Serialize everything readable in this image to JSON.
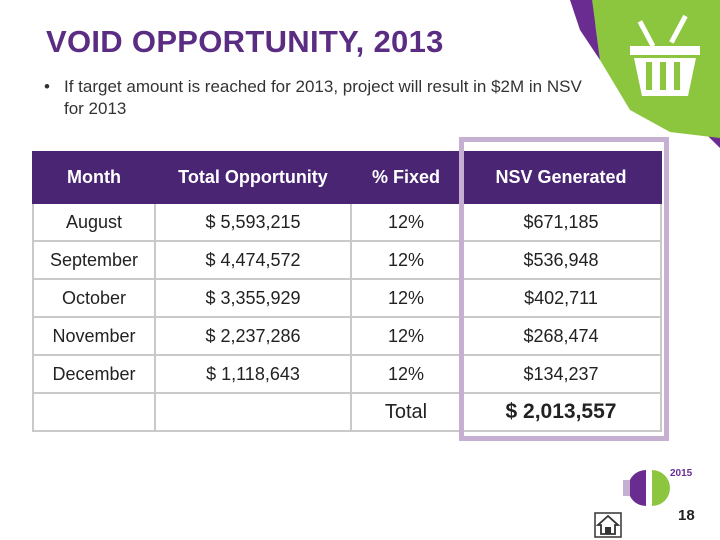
{
  "slide": {
    "title": "VOID OPPORTUNITY, 2013",
    "bullet": "If target amount is reached for 2013, project will result in $2M in NSV for 2013",
    "page_number": "18"
  },
  "logo": {
    "year": "2015"
  },
  "table": {
    "headers": [
      "Month",
      "Total Opportunity",
      "% Fixed",
      "NSV Generated"
    ],
    "rows": [
      [
        "August",
        "$ 5,593,215",
        "12%",
        "$671,185"
      ],
      [
        "September",
        "$ 4,474,572",
        "12%",
        "$536,948"
      ],
      [
        "October",
        "$ 3,355,929",
        "12%",
        "$402,711"
      ],
      [
        "November",
        "$ 2,237,286",
        "12%",
        "$268,474"
      ],
      [
        "December",
        "$ 1,118,643",
        "12%",
        "$134,237"
      ]
    ],
    "total_label": "Total",
    "total_value": "$ 2,013,557"
  },
  "colors": {
    "title": "#5a2d82",
    "header_bg": "#4a2574",
    "highlight": "#c6b0d2",
    "accent_green": "#8cc63f",
    "accent_purple": "#6b2c91"
  },
  "icons": {
    "corner": "shopping-basket-icon",
    "footer": "home-icon"
  }
}
